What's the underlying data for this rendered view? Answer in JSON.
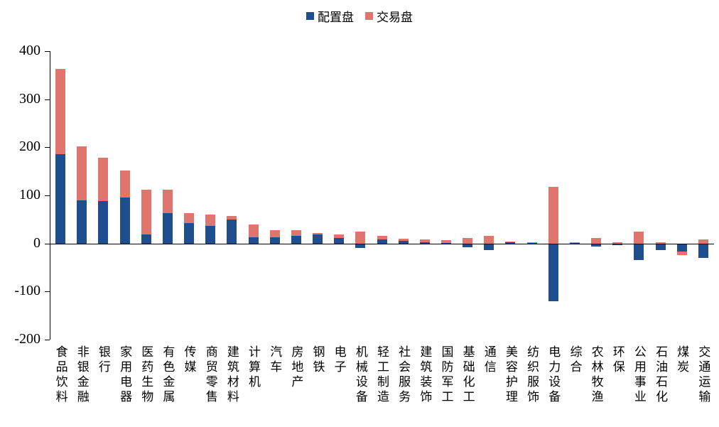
{
  "chart_data": {
    "type": "bar",
    "stacked": true,
    "title": "",
    "xlabel": "",
    "ylabel": "",
    "grid": false,
    "legend_position": "top",
    "ylim": [
      -200,
      400
    ],
    "yticks": [
      400,
      300,
      200,
      100,
      0,
      -100,
      -200
    ],
    "categories": [
      "食品饮料",
      "非银金融",
      "银行",
      "家用电器",
      "医药生物",
      "有色金属",
      "传媒",
      "商贸零售",
      "建筑材料",
      "计算机",
      "汽车",
      "房地产",
      "钢铁",
      "电子",
      "机械设备",
      "轻工制造",
      "社会服务",
      "建筑装饰",
      "国防军工",
      "基础化工",
      "通信",
      "美容护理",
      "纺织服饰",
      "电力设备",
      "综合",
      "农林牧渔",
      "环保",
      "公用事业",
      "石油石化",
      "煤炭",
      "交通运输"
    ],
    "series": [
      {
        "name": "配置盘",
        "color": "#1f4e8f",
        "values": [
          185,
          90,
          88,
          96,
          19,
          63,
          43,
          37,
          50,
          13,
          13,
          16,
          18,
          12,
          -8,
          9,
          5,
          2,
          1,
          -7,
          -13,
          3,
          2,
          -118,
          1,
          -5,
          -2,
          -33,
          -12,
          -15,
          -28
        ]
      },
      {
        "name": "交易盘",
        "color": "#e0756d",
        "values": [
          178,
          112,
          91,
          55,
          93,
          49,
          20,
          23,
          7,
          27,
          15,
          11,
          3,
          7,
          25,
          7,
          5,
          7,
          6,
          12,
          16,
          1,
          1,
          118,
          2,
          12,
          2,
          25,
          3,
          -8,
          9
        ]
      }
    ]
  }
}
